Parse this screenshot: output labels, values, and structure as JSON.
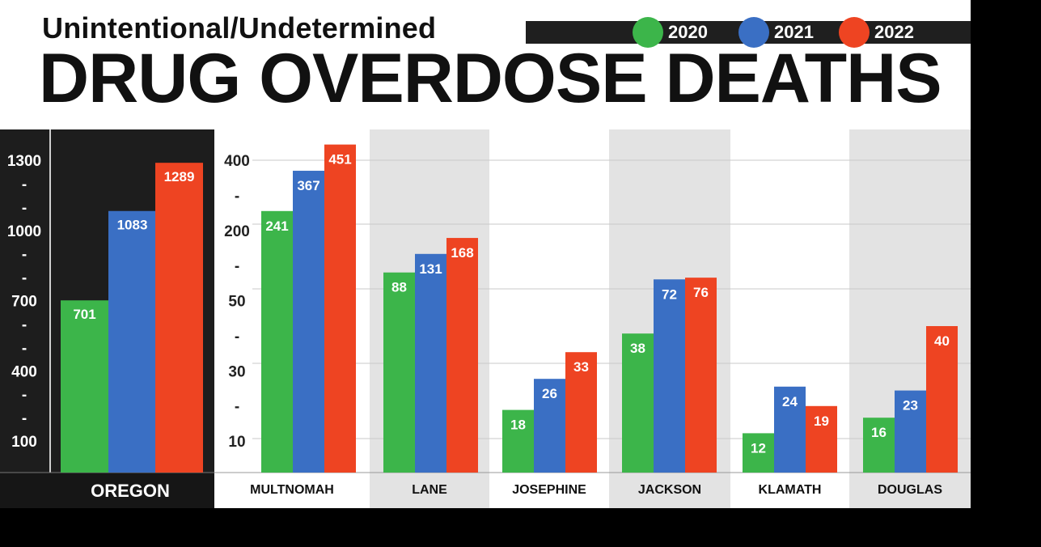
{
  "header": {
    "subtitle": "Unintentional/Undetermined",
    "title": "DRUG OVERDOSE DEATHS"
  },
  "legend": [
    {
      "label": "2020",
      "color": "#3cb54a"
    },
    {
      "label": "2021",
      "color": "#3a6fc4"
    },
    {
      "label": "2022",
      "color": "#ee4422"
    }
  ],
  "chart_data": [
    {
      "type": "bar",
      "categories": [
        "OREGON"
      ],
      "series": [
        {
          "name": "2020",
          "values": [
            701
          ]
        },
        {
          "name": "2021",
          "values": [
            1083
          ]
        },
        {
          "name": "2022",
          "values": [
            1289
          ]
        }
      ],
      "yticks": [
        "1300",
        "-",
        "-",
        "1000",
        "-",
        "-",
        "700",
        "-",
        "-",
        "400",
        "-",
        "-",
        "100"
      ],
      "ylim": [
        0,
        1300
      ]
    },
    {
      "type": "bar",
      "categories": [
        "MULTNOMAH",
        "LANE",
        "JOSEPHINE",
        "JACKSON",
        "KLAMATH",
        "DOUGLAS"
      ],
      "series": [
        {
          "name": "2020",
          "values": [
            241,
            88,
            18,
            38,
            12,
            16
          ]
        },
        {
          "name": "2021",
          "values": [
            367,
            131,
            26,
            72,
            24,
            23
          ]
        },
        {
          "name": "2022",
          "values": [
            451,
            168,
            33,
            76,
            19,
            40
          ]
        }
      ],
      "yticks": [
        "400",
        "-",
        "200",
        "-",
        "50",
        "-",
        "30",
        "-",
        "10"
      ],
      "scale": "non-linear"
    }
  ]
}
